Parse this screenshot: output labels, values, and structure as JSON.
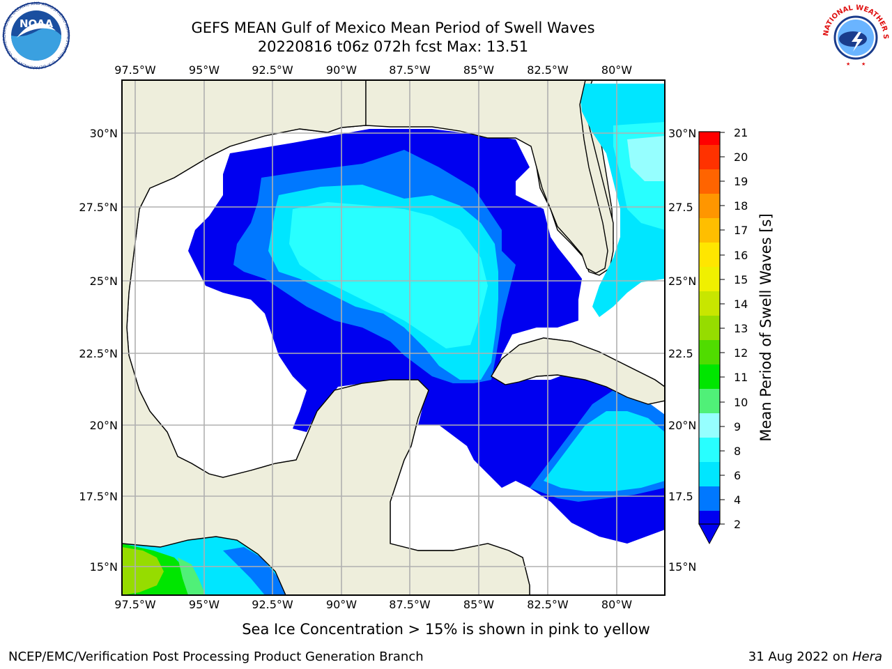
{
  "title": {
    "line1": "GEFS MEAN Gulf of Mexico Mean Period of Swell Waves",
    "line2": "20220816 t06z 072h fcst   Max: 13.51"
  },
  "map": {
    "lon_labels": [
      "97.5°W",
      "95°W",
      "92.5°W",
      "90°W",
      "87.5°W",
      "85°W",
      "82.5°W",
      "80°W"
    ],
    "lat_labels": [
      "30°N",
      "27.5°N",
      "25°N",
      "22.5°N",
      "20°N",
      "17.5°N",
      "15°N"
    ],
    "lat_labels_right": [
      "30°N",
      "27.5",
      "25°N",
      "22.5",
      "20°N",
      "17.5",
      "15°N"
    ],
    "land_color": "#eeeedc",
    "water_color": "#ffffff",
    "grid_color": "#b0b0b0"
  },
  "colorbar": {
    "label": "Mean Period of Swell Waves [s]",
    "ticks": [
      "2",
      "4",
      "6",
      "8",
      "9",
      "10",
      "11",
      "12",
      "13",
      "14",
      "15",
      "16",
      "17",
      "18",
      "19",
      "20",
      "21"
    ],
    "colors": [
      "#0000f0",
      "#0078ff",
      "#00e6ff",
      "#28ffff",
      "#96ffff",
      "#50f078",
      "#00e600",
      "#50dc00",
      "#96dc00",
      "#c8e600",
      "#f0f000",
      "#ffe600",
      "#ffbe00",
      "#ff9600",
      "#ff6400",
      "#ff3200",
      "#ff0000"
    ],
    "extend_color": "#0000f0"
  },
  "note": "Sea Ice Concentration > 15% is shown in pink to yellow",
  "footer": {
    "left": "NCEP/EMC/Verification Post Processing Product Generation Branch",
    "right_prefix": "31 Aug 2022 on ",
    "right_machine": "Hera"
  },
  "logos": {
    "noaa": "NOAA",
    "noaa_ring": "NATIONAL OCEANIC AND ATMOSPHERIC ADMINISTRATION · U.S. DEPARTMENT OF COMMERCE",
    "nws_ring": "NATIONAL WEATHER SERVICE"
  }
}
